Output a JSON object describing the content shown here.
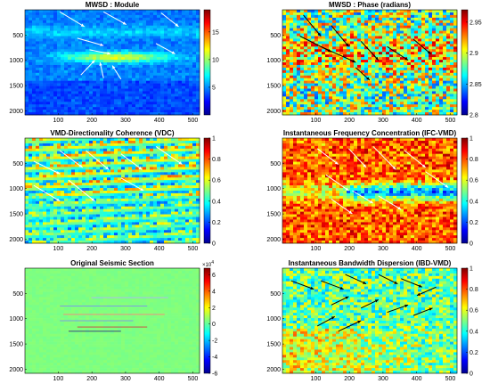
{
  "chart_data": [
    {
      "type": "heatmap",
      "title": "MWSD : Module",
      "xticks": [
        100,
        200,
        300,
        400,
        500
      ],
      "yticks": [
        500,
        1000,
        1500,
        2000
      ],
      "xlim": [
        1,
        520
      ],
      "ylim": [
        2080,
        1
      ],
      "colorbar": {
        "range": [
          0,
          19
        ],
        "ticks": [
          "15",
          "10",
          "5"
        ],
        "tick_values": [
          15,
          10,
          5
        ]
      },
      "colormap": "jet",
      "arrow_color": "#ffffff"
    },
    {
      "type": "heatmap",
      "title": "MWSD : Phase (radians)",
      "xticks": [
        100,
        200,
        300,
        400,
        500
      ],
      "yticks": [
        500,
        1000,
        1500,
        2000
      ],
      "xlim": [
        1,
        520
      ],
      "ylim": [
        2080,
        1
      ],
      "colorbar": {
        "range": [
          2.8,
          2.97
        ],
        "ticks": [
          "2.95",
          "2.9",
          "2.85",
          "2.8"
        ],
        "tick_values": [
          2.95,
          2.9,
          2.85,
          2.8
        ]
      },
      "colormap": "jet",
      "arrow_color": "#000000"
    },
    {
      "type": "heatmap",
      "title": "VMD-Directionality Coherence (VDC)",
      "xticks": [
        100,
        200,
        300,
        400,
        500
      ],
      "yticks": [
        500,
        1000,
        1500,
        2000
      ],
      "xlim": [
        1,
        520
      ],
      "ylim": [
        2080,
        1
      ],
      "colorbar": {
        "range": [
          0,
          1
        ],
        "ticks": [
          "1",
          "0.8",
          "0.6",
          "0.4",
          "0.2",
          "0"
        ],
        "tick_values": [
          1,
          0.8,
          0.6,
          0.4,
          0.2,
          0
        ]
      },
      "colormap": "jet",
      "arrow_color": "#ffffff"
    },
    {
      "type": "heatmap",
      "title": "Instantaneous Frequency Concentration (IFC-VMD)",
      "xticks": [
        100,
        200,
        300,
        400,
        500
      ],
      "yticks": [
        500,
        1000,
        1500,
        2000
      ],
      "xlim": [
        1,
        520
      ],
      "ylim": [
        2080,
        1
      ],
      "colorbar": {
        "range": [
          0,
          1
        ],
        "ticks": [
          "1",
          "0.8",
          "0.6",
          "0.4",
          "0.2",
          "0"
        ],
        "tick_values": [
          1,
          0.8,
          0.6,
          0.4,
          0.2,
          0
        ]
      },
      "colormap": "jet",
      "arrow_color": "#ffffff"
    },
    {
      "type": "heatmap",
      "title": "Original Seismic Section",
      "xticks": [
        100,
        200,
        300,
        400,
        500
      ],
      "yticks": [
        500,
        1000,
        1500,
        2000
      ],
      "xlim": [
        1,
        520
      ],
      "ylim": [
        2080,
        1
      ],
      "colorbar": {
        "range": [
          -6,
          6.8
        ],
        "ticks": [
          "6",
          "4",
          "2",
          "0",
          "-2",
          "-4",
          "-6"
        ],
        "tick_values": [
          6,
          4,
          2,
          0,
          -2,
          -4,
          -6
        ],
        "exponent_base": "×10",
        "exponent_power": "4"
      },
      "colormap": "jet",
      "arrow_color": ""
    },
    {
      "type": "heatmap",
      "title": "Instantaneous Bandwidth Dispersion (IBD-VMD)",
      "xticks": [
        100,
        200,
        300,
        400,
        500
      ],
      "yticks": [
        500,
        1000,
        1500,
        2000
      ],
      "xlim": [
        1,
        520
      ],
      "ylim": [
        2080,
        1
      ],
      "colorbar": {
        "range": [
          0,
          1
        ],
        "ticks": [
          "1",
          "0.8",
          "0.6",
          "0.4",
          "0.2",
          "0"
        ],
        "tick_values": [
          1,
          0.8,
          0.6,
          0.4,
          0.2,
          0
        ]
      },
      "colormap": "jet",
      "arrow_color": "#000000"
    }
  ]
}
